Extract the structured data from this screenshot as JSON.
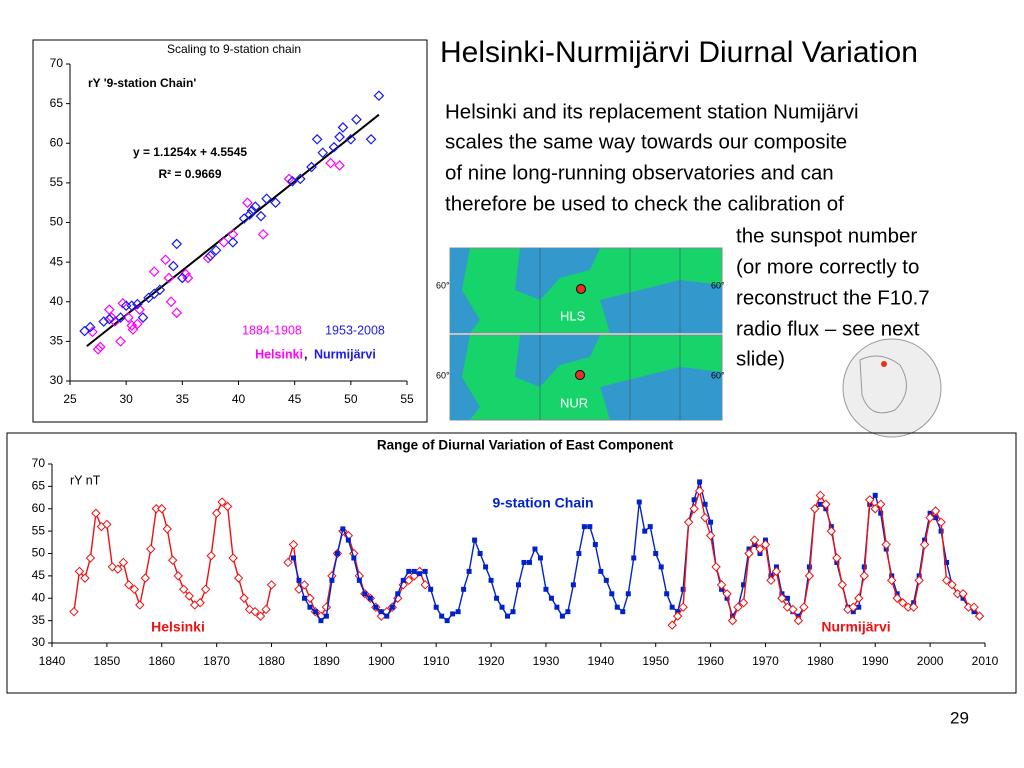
{
  "title": "Helsinki-Nurmijärvi Diurnal Variation",
  "body_lines": [
    "Helsinki and its replacement station Numijärvi",
    "scales the same way towards our composite",
    "of nine long-running observatories and can",
    "therefore be used to check the calibration of",
    "the sunspot number",
    "(or more correctly to",
    "reconstruct the F10.7",
    "radio flux – see next",
    "slide)"
  ],
  "maps": {
    "labels": [
      "HLS",
      "NUR"
    ],
    "latitude": "60°"
  },
  "page_number": "29",
  "chart_data": [
    {
      "type": "scatter",
      "title": "Scaling to 9-station chain",
      "ylabel": "rY '9-station Chain'",
      "annotations": [
        "y = 1.1254x + 4.5545",
        "R² = 0.9669"
      ],
      "legend_separator": ",",
      "xlim": [
        25,
        55
      ],
      "xticks": [
        25,
        30,
        35,
        40,
        45,
        50,
        55
      ],
      "ylim": [
        30,
        70
      ],
      "yticks": [
        30,
        35,
        40,
        45,
        50,
        55,
        60,
        65,
        70
      ],
      "trendline": {
        "x": [
          26.5,
          52.5
        ],
        "y": [
          34.4,
          63.6
        ],
        "color": "#000000"
      },
      "series": [
        {
          "name": "Helsinki",
          "period": "1884-1908",
          "color": "#ff00ff",
          "x": [
            27.5,
            27.7,
            28.5,
            28.7,
            29.5,
            29.7,
            30.2,
            30.5,
            31,
            31.2,
            32.5,
            33.5,
            33.8,
            34.5,
            35.3,
            37.3,
            38.7,
            39.5,
            40.8,
            42.2,
            44.5,
            48.2,
            49,
            27,
            29,
            30.6,
            34,
            35.5
          ],
          "values": [
            34,
            34.3,
            39,
            38,
            35,
            39.8,
            38,
            37,
            37.2,
            39,
            43.8,
            45.3,
            43,
            38.6,
            43.5,
            45.5,
            47.5,
            48.5,
            52.5,
            48.5,
            55.5,
            57.5,
            57.2,
            36.2,
            37.5,
            36.5,
            40,
            43
          ]
        },
        {
          "name": "Nurmijärvi",
          "period": "1953-2008",
          "color": "#1a1aee",
          "x": [
            26.3,
            26.8,
            28,
            28.5,
            29.5,
            30,
            30.5,
            31,
            31.5,
            32,
            32.5,
            33,
            34.5,
            34.2,
            35,
            37.5,
            38,
            39.5,
            40.5,
            41,
            41.2,
            41.5,
            42,
            42.5,
            43.3,
            44.8,
            45.5,
            46.5,
            47,
            47.5,
            48.5,
            49,
            49.3,
            50,
            50.5,
            51.8,
            52.5
          ],
          "values": [
            36.3,
            36.8,
            37.5,
            37.8,
            38,
            39.5,
            39.5,
            39.7,
            38,
            40.5,
            41,
            41.5,
            47.3,
            44.5,
            43,
            45.8,
            46.5,
            47.5,
            50.5,
            51,
            51.5,
            52,
            50.8,
            53,
            52.5,
            55.2,
            55.5,
            57,
            60.5,
            58.8,
            59.5,
            60.8,
            62,
            60.5,
            63,
            60.5,
            66
          ]
        }
      ]
    },
    {
      "type": "line",
      "title": "Range of Diurnal Variation of East Component",
      "ylabel": "rY nT",
      "xlim": [
        1840,
        2010
      ],
      "xticks": [
        1840,
        1850,
        1860,
        1870,
        1880,
        1890,
        1900,
        1910,
        1920,
        1930,
        1940,
        1950,
        1960,
        1970,
        1980,
        1990,
        2000,
        2010
      ],
      "ylim": [
        30,
        70
      ],
      "yticks": [
        30,
        35,
        40,
        45,
        50,
        55,
        60,
        65,
        70
      ],
      "series": [
        {
          "name": "Helsinki",
          "color": "#ee1111",
          "marker": "diamond",
          "x": [
            1844,
            1845,
            1846,
            1847,
            1848,
            1849,
            1850,
            1851,
            1852,
            1853,
            1854,
            1855,
            1856,
            1857,
            1858,
            1859,
            1860,
            1861,
            1862,
            1863,
            1864,
            1865,
            1866,
            1867,
            1868,
            1869,
            1870,
            1871,
            1872,
            1873,
            1874,
            1875,
            1876,
            1877,
            1878,
            1879,
            1880,
            1881,
            1882,
            1883,
            1884,
            1885,
            1886,
            1887,
            1888,
            1889,
            1890,
            1891,
            1892,
            1893,
            1894,
            1895,
            1896,
            1897,
            1898,
            1899,
            1900,
            1901,
            1902,
            1903,
            1904,
            1905,
            1906,
            1907,
            1908
          ],
          "values": [
            37,
            46,
            44.5,
            49,
            59,
            56,
            56.5,
            47,
            46.5,
            48,
            43,
            42,
            38.5,
            44.5,
            51,
            60,
            60,
            55.5,
            48.5,
            45,
            42,
            40.5,
            38.5,
            39,
            42,
            49.5,
            59,
            61.5,
            60.5,
            49,
            44.5,
            40,
            37.5,
            37,
            36,
            37.5,
            43,
            null,
            null,
            48,
            52,
            42,
            43,
            40,
            37,
            36,
            38,
            45,
            50,
            55,
            54,
            50,
            45,
            41,
            40,
            38,
            36,
            37,
            38,
            40,
            43,
            44,
            45,
            46,
            43
          ]
        },
        {
          "name": "9-station Chain",
          "color": "#0022cc",
          "marker": "square",
          "x": [
            1884,
            1885,
            1886,
            1887,
            1888,
            1889,
            1890,
            1891,
            1892,
            1893,
            1894,
            1895,
            1896,
            1897,
            1898,
            1899,
            1900,
            1901,
            1902,
            1903,
            1904,
            1905,
            1906,
            1907,
            1908,
            1909,
            1910,
            1911,
            1912,
            1913,
            1914,
            1915,
            1916,
            1917,
            1918,
            1919,
            1920,
            1921,
            1922,
            1923,
            1924,
            1925,
            1926,
            1927,
            1928,
            1929,
            1930,
            1931,
            1932,
            1933,
            1934,
            1935,
            1936,
            1937,
            1938,
            1939,
            1940,
            1941,
            1942,
            1943,
            1944,
            1945,
            1946,
            1947,
            1948,
            1949,
            1950,
            1951,
            1952,
            1953,
            1954,
            1955,
            1956,
            1957,
            1958,
            1959,
            1960,
            1961,
            1962,
            1963,
            1964,
            1965,
            1966,
            1967,
            1968,
            1969,
            1970,
            1971,
            1972,
            1973,
            1974,
            1975,
            1976,
            1977,
            1978,
            1979,
            1980,
            1981,
            1982,
            1983,
            1984,
            1985,
            1986,
            1987,
            1988,
            1989,
            1990,
            1991,
            1992,
            1993,
            1994,
            1995,
            1996,
            1997,
            1998,
            1999,
            2000,
            2001,
            2002,
            2003,
            2004,
            2005,
            2006,
            2007,
            2008,
            2009
          ],
          "values": [
            49,
            44,
            40,
            38,
            37,
            35,
            36,
            44,
            50,
            55.5,
            53,
            49,
            44,
            41,
            40,
            38,
            37,
            36,
            38,
            41,
            44,
            46,
            46,
            45.5,
            46,
            42,
            38,
            36,
            35,
            36.5,
            37,
            42,
            46,
            53,
            50,
            47,
            44,
            40,
            38,
            36,
            37,
            43,
            48,
            48,
            51,
            49,
            42,
            40,
            38,
            36,
            37,
            43,
            50,
            56,
            56,
            52,
            46,
            44,
            41,
            38,
            37,
            41,
            49,
            61.5,
            55,
            56,
            50,
            47,
            41,
            38,
            37,
            42,
            57,
            62,
            66,
            61,
            57,
            47,
            42,
            40,
            36,
            38,
            43,
            51,
            52,
            50,
            53,
            45,
            47,
            41,
            40,
            37,
            36,
            38,
            47,
            60,
            61,
            60,
            56,
            48,
            43,
            38,
            37,
            38,
            47,
            61,
            63,
            59,
            51,
            45,
            41,
            39,
            38,
            39,
            45,
            53,
            59,
            58,
            55,
            48,
            43,
            41,
            40,
            38,
            37,
            36
          ]
        },
        {
          "name": "Nurmijärvi",
          "color": "#ee1111",
          "marker": "diamond",
          "x": [
            1953,
            1954,
            1955,
            1956,
            1957,
            1958,
            1959,
            1960,
            1961,
            1962,
            1963,
            1964,
            1965,
            1966,
            1967,
            1968,
            1969,
            1970,
            1971,
            1972,
            1973,
            1974,
            1975,
            1976,
            1977,
            1978,
            1979,
            1980,
            1981,
            1982,
            1983,
            1984,
            1985,
            1986,
            1987,
            1988,
            1989,
            1990,
            1991,
            1992,
            1993,
            1994,
            1995,
            1996,
            1997,
            1998,
            1999,
            2000,
            2001,
            2002,
            2003,
            2004,
            2005,
            2006,
            2007,
            2008,
            2009
          ],
          "values": [
            34,
            36,
            38,
            57,
            60,
            64,
            58,
            54,
            47,
            43,
            41,
            35,
            38,
            39,
            50,
            53,
            51,
            52,
            44,
            46,
            40,
            38,
            37.5,
            35,
            38,
            45,
            60,
            63,
            61,
            55,
            49,
            43,
            37.5,
            38,
            40,
            45,
            62,
            60,
            61,
            52,
            44,
            40,
            39,
            38,
            38,
            44,
            52,
            58,
            59.5,
            57,
            44,
            43,
            41,
            41,
            38,
            38,
            36
          ]
        }
      ]
    }
  ]
}
